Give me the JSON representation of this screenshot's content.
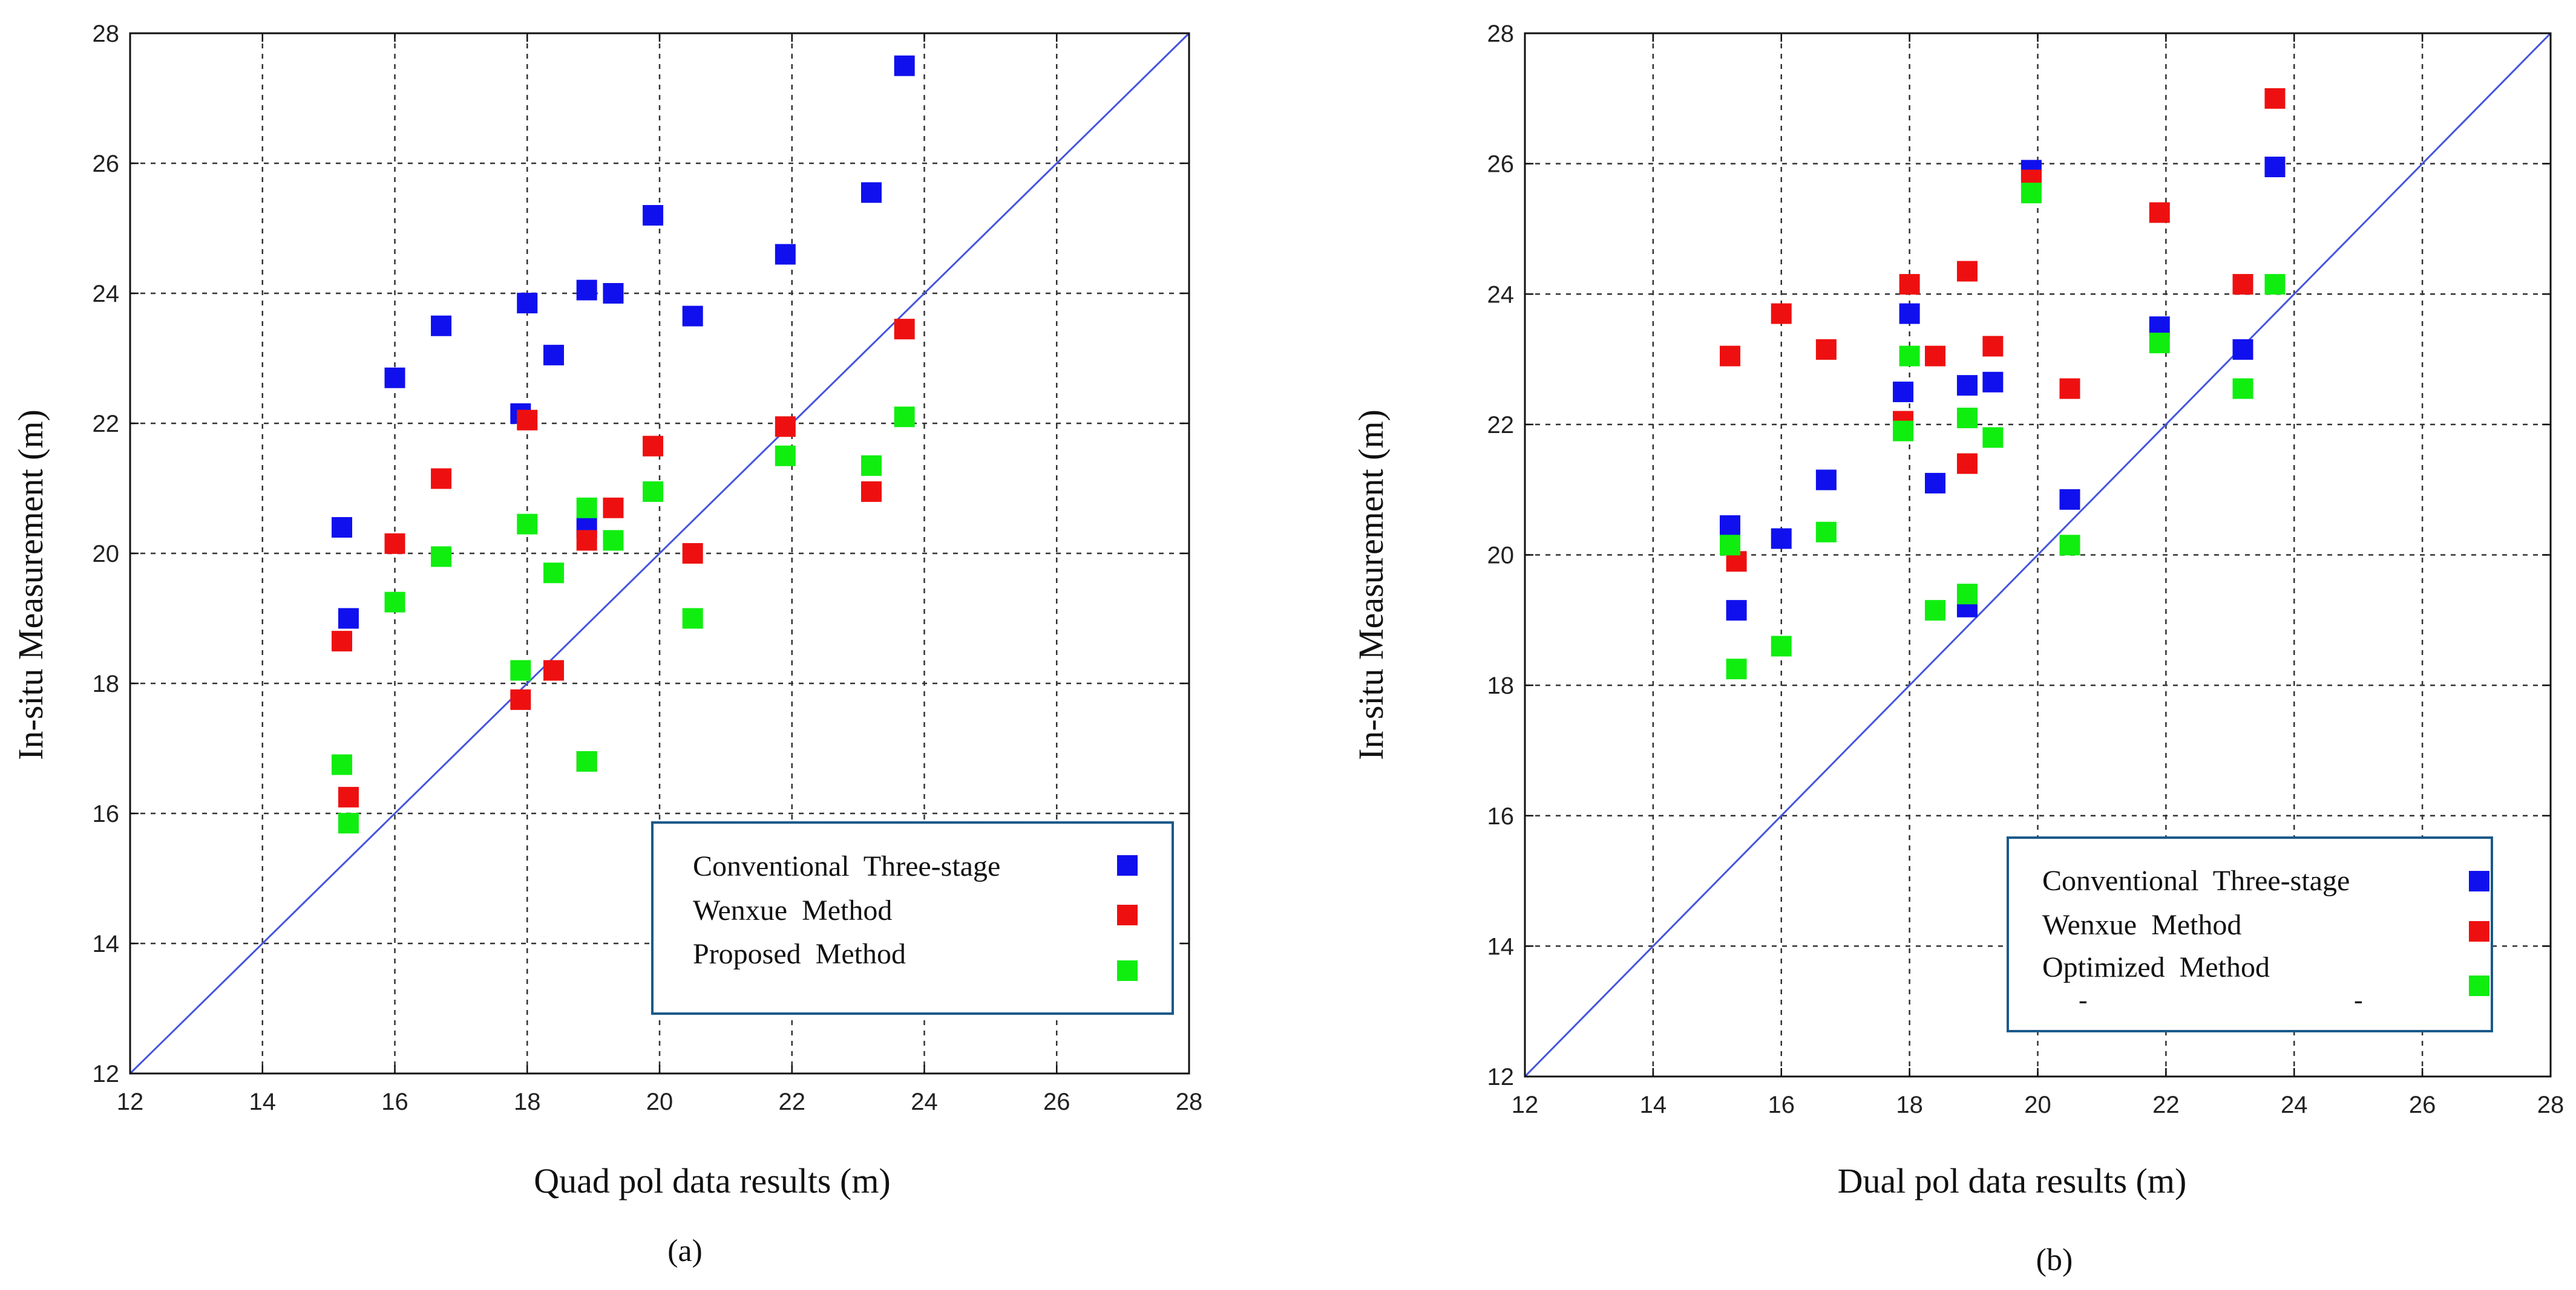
{
  "colors": {
    "blue": "#1010ee",
    "red": "#ee1010",
    "green": "#10ee10",
    "line": "#4455dd",
    "grid": "#333333",
    "legend_border": "#1a5a8a"
  },
  "chart_data": [
    {
      "panel_label": "(a)",
      "type": "scatter",
      "xlabel": "Quad pol data results (m)",
      "ylabel": "In-situ Measurement (m)",
      "xlim": [
        12,
        28
      ],
      "ylim": [
        12,
        28
      ],
      "xticks": [
        "12",
        "14",
        "16",
        "18",
        "20",
        "22",
        "24",
        "26",
        "28"
      ],
      "yticks": [
        "12",
        "14",
        "16",
        "18",
        "20",
        "22",
        "24",
        "26",
        "28"
      ],
      "grid": true,
      "legend_position": "bottom-right",
      "reference_line": "y = x",
      "series": [
        {
          "name": "Conventional  Three-stage",
          "color": "blue",
          "x": [
            15.2,
            15.3,
            16.0,
            16.7,
            17.9,
            18.0,
            18.4,
            18.9,
            18.9,
            19.3,
            19.9,
            20.5,
            21.9,
            23.2,
            23.7
          ],
          "y": [
            20.4,
            19.0,
            22.7,
            23.5,
            22.15,
            23.85,
            23.05,
            24.05,
            20.4,
            24.0,
            25.2,
            23.65,
            24.6,
            25.55,
            27.5
          ]
        },
        {
          "name": "Wenxue  Method",
          "color": "red",
          "x": [
            15.2,
            15.3,
            16.0,
            16.7,
            17.9,
            18.0,
            18.4,
            18.9,
            18.9,
            19.3,
            19.9,
            20.5,
            21.9,
            23.2,
            23.7
          ],
          "y": [
            18.65,
            16.25,
            20.15,
            21.15,
            17.75,
            22.05,
            18.2,
            20.2,
            16.8,
            20.7,
            21.65,
            20.0,
            21.95,
            20.95,
            23.45
          ]
        },
        {
          "name": "Proposed  Method",
          "color": "green",
          "x": [
            15.2,
            15.3,
            16.0,
            16.7,
            17.9,
            18.0,
            18.4,
            18.9,
            18.9,
            19.3,
            19.9,
            20.5,
            21.9,
            23.2,
            23.7
          ],
          "y": [
            16.75,
            15.85,
            19.25,
            19.95,
            18.2,
            20.45,
            19.7,
            20.7,
            16.8,
            20.2,
            20.95,
            19.0,
            21.5,
            21.35,
            22.1
          ]
        }
      ]
    },
    {
      "panel_label": "(b)",
      "type": "scatter",
      "xlabel": "Dual pol data results (m)",
      "ylabel": "In-situ Measurement (m)",
      "xlim": [
        12,
        28
      ],
      "ylim": [
        12,
        28
      ],
      "xticks": [
        "12",
        "14",
        "16",
        "18",
        "20",
        "22",
        "24",
        "26",
        "28"
      ],
      "yticks": [
        "12",
        "14",
        "16",
        "18",
        "20",
        "22",
        "24",
        "26",
        "28"
      ],
      "grid": true,
      "legend_position": "bottom-right",
      "reference_line": "y = x",
      "series": [
        {
          "name": "Conventional  Three-stage",
          "color": "blue",
          "x": [
            15.2,
            15.3,
            16.0,
            16.7,
            17.9,
            18.0,
            18.4,
            18.9,
            18.9,
            19.3,
            19.9,
            20.5,
            21.9,
            23.2,
            23.7
          ],
          "y": [
            20.45,
            19.15,
            20.25,
            21.15,
            22.5,
            23.7,
            21.1,
            22.6,
            19.2,
            22.65,
            25.9,
            20.85,
            23.5,
            23.15,
            25.95
          ]
        },
        {
          "name": "Wenxue  Method",
          "color": "red",
          "x": [
            15.2,
            15.3,
            16.0,
            16.7,
            17.9,
            18.0,
            18.4,
            18.9,
            18.9,
            19.3,
            19.9,
            20.5,
            21.9,
            23.2,
            23.7
          ],
          "y": [
            23.05,
            19.9,
            23.7,
            23.15,
            22.05,
            24.15,
            23.05,
            24.35,
            21.4,
            23.2,
            25.75,
            22.55,
            25.25,
            24.15,
            27.0
          ]
        },
        {
          "name": "Optimized  Method",
          "color": "green",
          "x": [
            15.2,
            15.3,
            16.0,
            16.7,
            17.9,
            18.0,
            18.4,
            18.9,
            18.9,
            19.3,
            19.9,
            20.5,
            21.9,
            23.2,
            23.7
          ],
          "y": [
            20.15,
            18.25,
            18.6,
            20.35,
            21.9,
            23.05,
            19.15,
            22.1,
            19.4,
            21.8,
            25.55,
            20.15,
            23.25,
            22.55,
            24.15
          ]
        }
      ]
    }
  ]
}
